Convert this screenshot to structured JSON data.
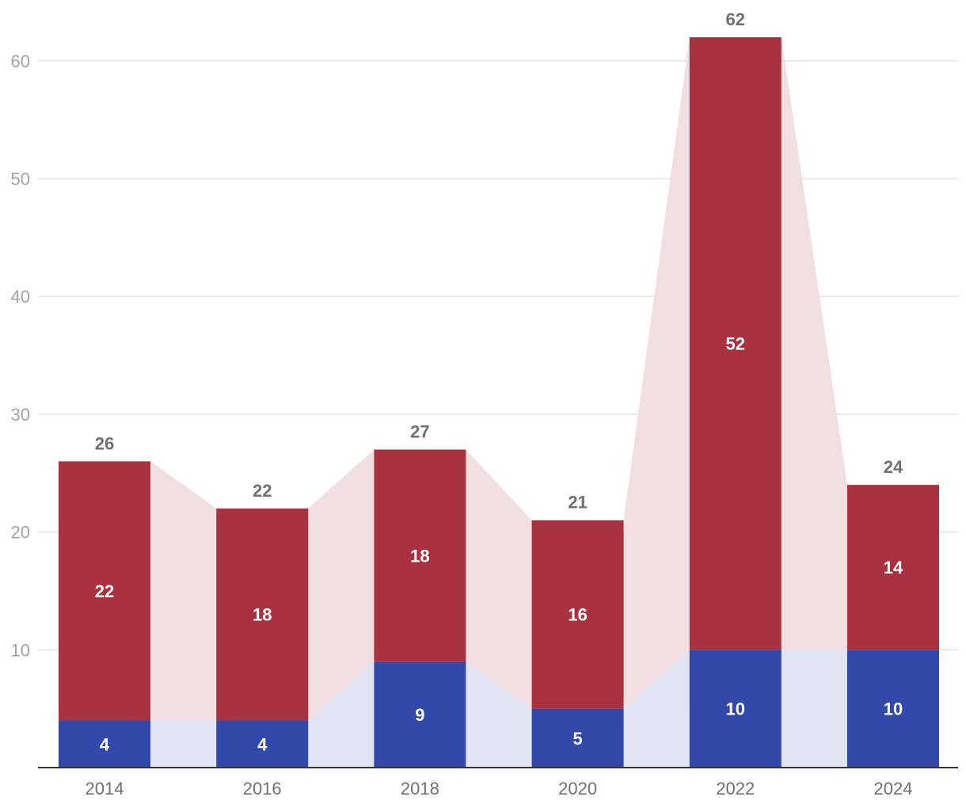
{
  "chart_data": {
    "type": "bar",
    "stacked": true,
    "categories": [
      "2014",
      "2016",
      "2018",
      "2020",
      "2022",
      "2024"
    ],
    "series": [
      {
        "values": [
          4,
          4,
          9,
          5,
          10,
          10
        ],
        "color": "#3349aa",
        "band_color": "#e1e4f3"
      },
      {
        "values": [
          22,
          18,
          18,
          16,
          52,
          14
        ],
        "color": "#a83240",
        "band_color": "#f2dfe1"
      }
    ],
    "totals": [
      26,
      22,
      27,
      21,
      62,
      24
    ],
    "yticks": [
      10,
      20,
      30,
      40,
      50,
      60
    ],
    "ylim": [
      0,
      62
    ],
    "title": "",
    "xlabel": "",
    "ylabel": "",
    "grid": true,
    "legend": "none"
  }
}
